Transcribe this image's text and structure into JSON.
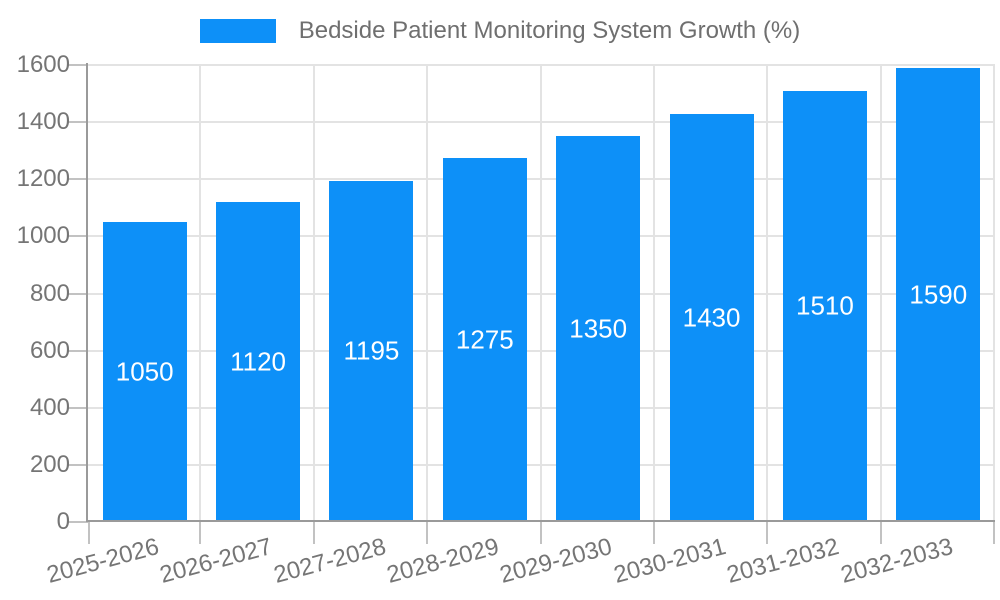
{
  "legend": {
    "label": "Bedside Patient Monitoring System Growth (%)"
  },
  "chart_data": {
    "type": "bar",
    "title": "Bedside Patient Monitoring System Growth (%)",
    "categories": [
      "2025-2026",
      "2026-2027",
      "2027-2028",
      "2028-2029",
      "2029-2030",
      "2030-2031",
      "2031-2032",
      "2032-2033"
    ],
    "series": [
      {
        "name": "Bedside Patient Monitoring System Growth (%)",
        "values": [
          1050,
          1120,
          1195,
          1275,
          1350,
          1430,
          1510,
          1590
        ]
      }
    ],
    "bar_labels": [
      "1050",
      "1120",
      "1195",
      "1275",
      "1350",
      "1430",
      "1510",
      "1590"
    ],
    "xlabel": "",
    "ylabel": "",
    "ylim": [
      0,
      1600
    ],
    "yticks": [
      0,
      200,
      400,
      600,
      800,
      1000,
      1200,
      1400,
      1600
    ],
    "grid": true,
    "vertical_gridlines": true,
    "legend_position": "top",
    "x_label_rotation_deg": -15,
    "colors": {
      "bar": "#0d90f8",
      "bar_label_text": "#ffffff",
      "axis_text": "#757575",
      "legend_text": "#6f6f6f",
      "gridline": "#e3e3e3",
      "axis_line": "#9a9a9a",
      "tick_mark": "#c2c2c2",
      "background": "#ffffff"
    }
  }
}
